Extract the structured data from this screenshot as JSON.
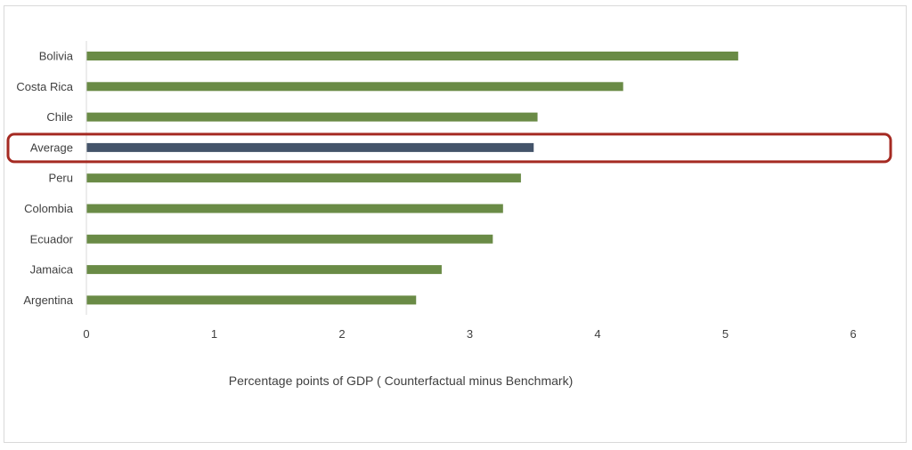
{
  "chart_data": {
    "type": "bar",
    "orientation": "horizontal",
    "title": "",
    "xlabel": "Percentage points of GDP  ( Counterfactual minus Benchmark)",
    "ylabel": "",
    "xlim": [
      0,
      6
    ],
    "xticks": [
      "0",
      "1",
      "2",
      "3",
      "4",
      "5",
      "6"
    ],
    "grid": false,
    "categories": [
      "Bolivia",
      "Costa Rica",
      "Chile",
      "Average",
      "Peru",
      "Colombia",
      "Ecuador",
      "Jamaica",
      "Argentina"
    ],
    "values": [
      5.1,
      4.2,
      3.53,
      3.5,
      3.4,
      3.26,
      3.18,
      2.78,
      2.58
    ],
    "colors": {
      "default_bar": "#6a8b46",
      "highlight_bar": "#44546a",
      "highlight_box": "#a52a22",
      "axis": "#d9d9d9"
    },
    "highlight_category": "Average"
  }
}
